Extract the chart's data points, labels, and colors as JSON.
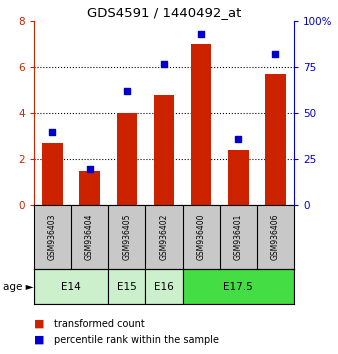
{
  "title": "GDS4591 / 1440492_at",
  "samples": [
    "GSM936403",
    "GSM936404",
    "GSM936405",
    "GSM936402",
    "GSM936400",
    "GSM936401",
    "GSM936406"
  ],
  "transformed_counts": [
    2.7,
    1.5,
    4.0,
    4.8,
    7.0,
    2.4,
    5.7
  ],
  "percentile_ranks": [
    40,
    20,
    62,
    77,
    93,
    36,
    82
  ],
  "bar_color": "#cc2200",
  "dot_color": "#0000cc",
  "ylim_left": [
    0,
    8
  ],
  "ylim_right": [
    0,
    100
  ],
  "yticks_left": [
    0,
    2,
    4,
    6,
    8
  ],
  "yticks_right": [
    0,
    25,
    50,
    75,
    100
  ],
  "yticklabels_right": [
    "0",
    "25",
    "50",
    "75",
    "100%"
  ],
  "bg_color": "#ffffff",
  "sample_bg_color": "#c8c8c8",
  "e14_color": "#ccf0cc",
  "e175_color": "#44dd44",
  "age_spans": [
    {
      "label": "E14",
      "start": 0,
      "end": 2,
      "color": "#ccf0cc"
    },
    {
      "label": "E15",
      "start": 2,
      "end": 3,
      "color": "#ccf0cc"
    },
    {
      "label": "E16",
      "start": 3,
      "end": 4,
      "color": "#ccf0cc"
    },
    {
      "label": "E17.5",
      "start": 4,
      "end": 7,
      "color": "#44dd44"
    }
  ]
}
